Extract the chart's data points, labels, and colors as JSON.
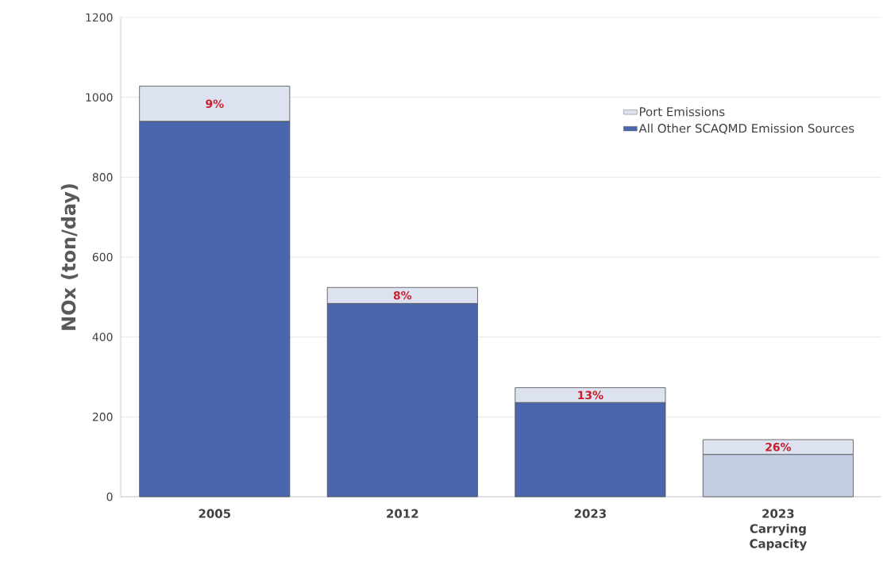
{
  "chart_data": {
    "type": "bar",
    "stacked": true,
    "ylabel": "NOx (ton/day)",
    "categories": [
      "2005",
      "2012",
      "2023",
      "2023 Carrying Capacity"
    ],
    "series": [
      {
        "name": "All Other SCAQMD Emission Sources",
        "color": "#4a67ad",
        "colors": [
          "#4a67ad",
          "#4a67ad",
          "#4a67ad",
          "#c3cde4"
        ],
        "values": [
          940,
          484,
          236,
          106
        ]
      },
      {
        "name": "Port Emissions",
        "color": "#dde2f0",
        "values": [
          88,
          40,
          37,
          37
        ]
      }
    ],
    "annotations": [
      "9%",
      "8%",
      "13%",
      "26%"
    ],
    "ylim": [
      0,
      1200
    ],
    "yticks": [
      0,
      200,
      400,
      600,
      800,
      1000,
      1200
    ],
    "grid": "y",
    "legend": "top right"
  }
}
